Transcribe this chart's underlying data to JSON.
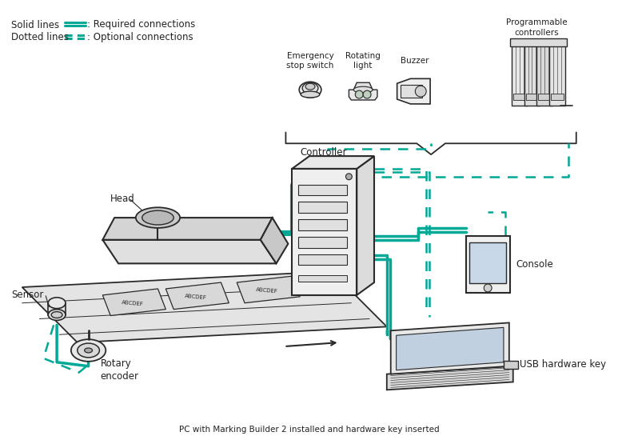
{
  "bg_color": "#ffffff",
  "line_color": "#2a2a2a",
  "teal_color": "#00a896",
  "labels": {
    "sensor": "Sensor",
    "head": "Head",
    "controller": "Controller",
    "console": "Console",
    "rotary_encoder": "Rotary\nencoder",
    "usb_key": "USB hardware key",
    "pc_label": "PC with Marking Builder 2 installed and hardware key inserted",
    "emergency": "Emergency\nstop switch",
    "rotating": "Rotating\nlight",
    "buzzer": "Buzzer",
    "prog_ctrl": "Programmable\ncontrollers",
    "solid_label": "Solid lines",
    "solid_desc": ": Required connections",
    "dotted_label": "Dotted lines",
    "dotted_desc": ": Optional connections"
  }
}
